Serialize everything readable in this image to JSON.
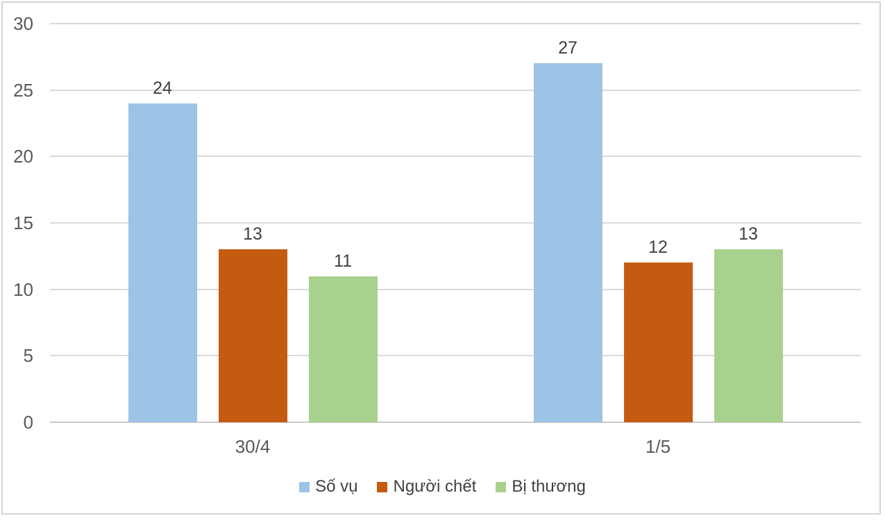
{
  "chart_data": {
    "type": "bar",
    "title": "",
    "xlabel": "",
    "ylabel": "",
    "categories": [
      "30/4",
      "1/5"
    ],
    "series": [
      {
        "name": "Số vụ",
        "color": "#9DC3E6",
        "values": [
          24,
          27
        ]
      },
      {
        "name": "Người chết",
        "color": "#C55A11",
        "values": [
          13,
          12
        ]
      },
      {
        "name": "Bị thương",
        "color": "#A9D18E",
        "values": [
          11,
          13
        ]
      }
    ],
    "ylim": [
      0,
      30
    ],
    "yticks": [
      0,
      5,
      10,
      15,
      20,
      25,
      30
    ],
    "grid": true,
    "data_labels": true,
    "legend_position": "bottom"
  },
  "colors": {
    "background": "#FFFFFF",
    "frame_border": "#D6D3D3",
    "gridline": "#D9D9D9",
    "axis_line": "#C9C9C9",
    "tick_text": "#595959",
    "category_text": "#595959",
    "data_label_text": "#404040",
    "legend_text": "#404040"
  }
}
